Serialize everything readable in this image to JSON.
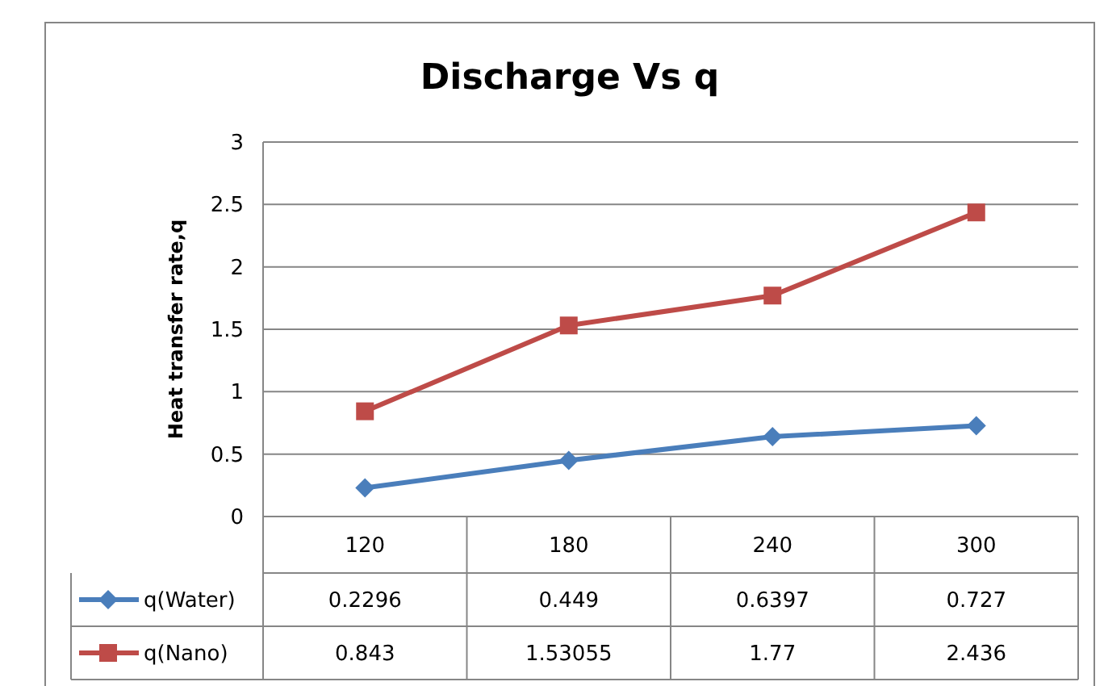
{
  "chart_data": {
    "type": "line",
    "title": "Discharge Vs q",
    "ylabel": "Heat transfer rate,q",
    "categories": [
      "120",
      "180",
      "240",
      "300"
    ],
    "series": [
      {
        "name": "q(Water)",
        "color": "#4a7ebb",
        "values": [
          0.2296,
          0.449,
          0.6397,
          0.727
        ],
        "marker": "diamond"
      },
      {
        "name": "q(Nano)",
        "color": "#be4b48",
        "values": [
          0.843,
          1.53055,
          1.77,
          2.436
        ],
        "marker": "square"
      }
    ],
    "ylim": [
      0,
      3
    ],
    "yticks": [
      0,
      0.5,
      1,
      1.5,
      2,
      2.5,
      3
    ],
    "grid": "y",
    "data_labels": true,
    "legend": "bottom",
    "line_style": "solid"
  }
}
